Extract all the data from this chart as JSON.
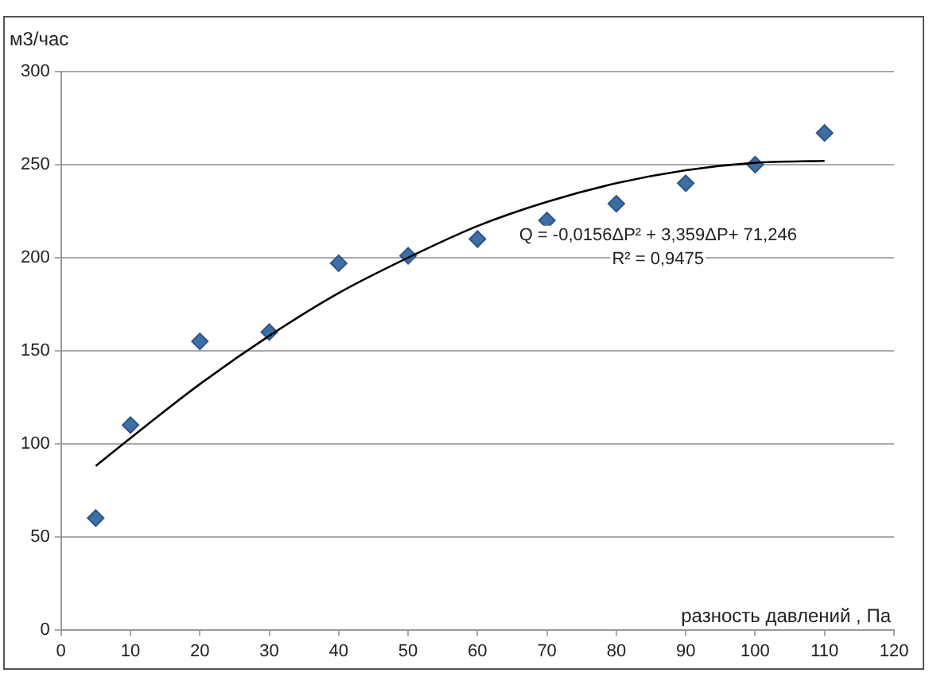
{
  "chart_data": {
    "type": "scatter",
    "xlabel": "разность давлений , Па",
    "ylabel": "м3/час",
    "annotations": [
      "Q = -0,0156ΔP² + 3,359ΔP+ 71,246",
      "R² = 0,9475"
    ],
    "series": [
      {
        "type": "scatter",
        "color": "#3d6fa6",
        "x": [
          5,
          10,
          20,
          30,
          40,
          50,
          60,
          70,
          80,
          90,
          100,
          110
        ],
        "values": [
          60,
          110,
          155,
          160,
          197,
          201,
          210,
          220,
          229,
          240,
          250,
          267
        ]
      },
      {
        "type": "line",
        "color": "#000000",
        "marker": "none",
        "x": [
          5,
          10,
          20,
          30,
          40,
          50,
          60,
          70,
          80,
          90,
          100,
          110
        ],
        "values": [
          88,
          103,
          132,
          158,
          181,
          200,
          217,
          230,
          240,
          247,
          251,
          252
        ]
      }
    ],
    "xlim": [
      0,
      120
    ],
    "xticks": [
      0,
      10,
      20,
      30,
      40,
      50,
      60,
      70,
      80,
      90,
      100,
      110,
      120
    ],
    "ylim": [
      0,
      300
    ],
    "yticks": [
      0,
      50,
      100,
      150,
      200,
      250,
      300
    ],
    "grid": "y",
    "legend": false,
    "marker": "diamond"
  }
}
